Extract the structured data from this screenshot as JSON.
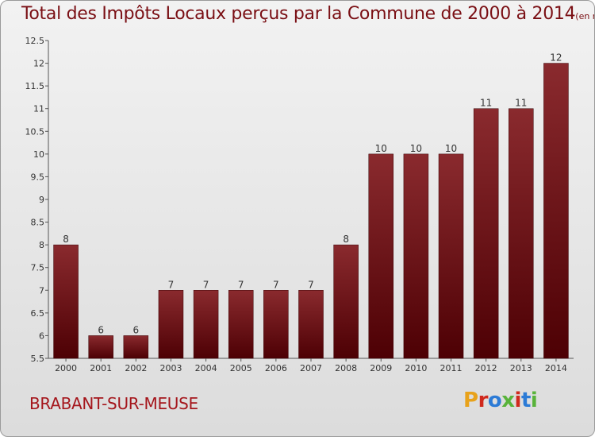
{
  "chart_data": {
    "type": "bar",
    "title": "Total des Impôts Locaux perçus par la Commune de 2000 à 2014",
    "subtitle": "(en milliers d'€)",
    "categories": [
      "2000",
      "2001",
      "2002",
      "2003",
      "2004",
      "2005",
      "2006",
      "2007",
      "2008",
      "2009",
      "2010",
      "2011",
      "2012",
      "2013",
      "2014"
    ],
    "values": [
      8,
      6,
      6,
      7,
      7,
      7,
      7,
      7,
      8,
      10,
      10,
      10,
      11,
      11,
      12
    ],
    "ylim": [
      5.5,
      12.5
    ],
    "yticks": [
      "5.5",
      "6",
      "6.5",
      "7",
      "7.5",
      "8",
      "8.5",
      "9",
      "9.5",
      "10",
      "10.5",
      "11",
      "11.5",
      "12",
      "12.5"
    ],
    "grid": false,
    "bar_color": "#6b0d12"
  },
  "footer": {
    "commune": "BRABANT-SUR-MEUSE",
    "logo": "Proxiti"
  },
  "colors": {
    "title": "#7a0f14",
    "commune": "#a5161c",
    "logo": [
      "#e8a21b",
      "#d0291d",
      "#2c7bd6",
      "#59b33b",
      "#d0291d",
      "#2c7bd6",
      "#59b33b"
    ]
  }
}
